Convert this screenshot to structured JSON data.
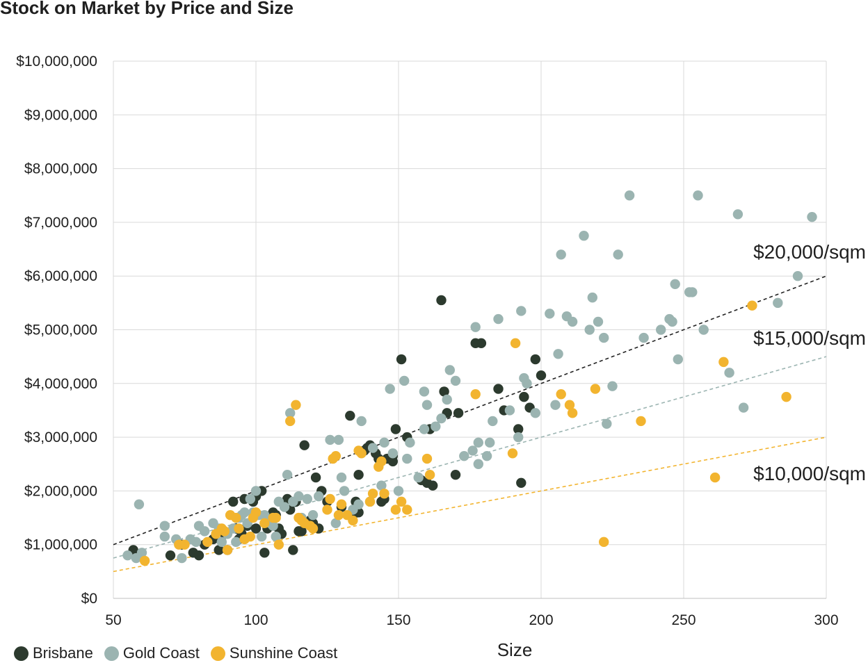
{
  "chart_data": {
    "type": "scatter",
    "title": "Stock on Market by Price and Size",
    "xlabel": "Size",
    "ylabel": "",
    "xlim": [
      50,
      300
    ],
    "ylim": [
      0,
      10000000
    ],
    "x_ticks": [
      50,
      100,
      150,
      200,
      250,
      300
    ],
    "x_tick_labels": [
      "50",
      "100",
      "150",
      "200",
      "250",
      "300"
    ],
    "y_ticks": [
      0,
      1000000,
      2000000,
      3000000,
      4000000,
      5000000,
      6000000,
      7000000,
      8000000,
      9000000,
      10000000
    ],
    "y_tick_labels": [
      "$0",
      "$1,000,000",
      "$2,000,000",
      "$3,000,000",
      "$4,000,000",
      "$5,000,000",
      "$6,000,000",
      "$7,000,000",
      "$8,000,000",
      "$9,000,000",
      "$10,000,000"
    ],
    "grid": true,
    "legend_position": "bottom-left",
    "series": [
      {
        "name": "Brisbane",
        "color": "#2c3a2e",
        "points": [
          [
            57,
            900000
          ],
          [
            70,
            800000
          ],
          [
            74,
            1000000
          ],
          [
            78,
            850000
          ],
          [
            80,
            800000
          ],
          [
            82,
            1000000
          ],
          [
            85,
            1100000
          ],
          [
            87,
            900000
          ],
          [
            89,
            1200000
          ],
          [
            90,
            900000
          ],
          [
            92,
            1800000
          ],
          [
            93,
            1300000
          ],
          [
            94,
            1100000
          ],
          [
            95,
            1200000
          ],
          [
            96,
            1850000
          ],
          [
            97,
            1350000
          ],
          [
            99,
            1800000
          ],
          [
            100,
            1900000
          ],
          [
            100,
            1300000
          ],
          [
            102,
            2000000
          ],
          [
            103,
            850000
          ],
          [
            104,
            1300000
          ],
          [
            105,
            1500000
          ],
          [
            106,
            1600000
          ],
          [
            107,
            1550000
          ],
          [
            108,
            1300000
          ],
          [
            109,
            1200000
          ],
          [
            111,
            1850000
          ],
          [
            112,
            1650000
          ],
          [
            113,
            900000
          ],
          [
            114,
            1800000
          ],
          [
            115,
            1250000
          ],
          [
            116,
            1250000
          ],
          [
            117,
            2850000
          ],
          [
            119,
            1450000
          ],
          [
            120,
            1400000
          ],
          [
            121,
            2250000
          ],
          [
            122,
            1300000
          ],
          [
            123,
            2000000
          ],
          [
            125,
            1800000
          ],
          [
            130,
            1700000
          ],
          [
            133,
            3400000
          ],
          [
            134,
            1550000
          ],
          [
            135,
            1800000
          ],
          [
            136,
            1600000
          ],
          [
            136,
            2300000
          ],
          [
            138,
            2750000
          ],
          [
            139,
            2800000
          ],
          [
            140,
            2850000
          ],
          [
            141,
            2800000
          ],
          [
            142,
            2700000
          ],
          [
            143,
            2600000
          ],
          [
            144,
            1800000
          ],
          [
            145,
            1850000
          ],
          [
            146,
            2600000
          ],
          [
            148,
            2650000
          ],
          [
            148,
            2550000
          ],
          [
            149,
            3150000
          ],
          [
            151,
            4450000
          ],
          [
            153,
            3000000
          ],
          [
            158,
            2200000
          ],
          [
            160,
            2150000
          ],
          [
            161,
            3150000
          ],
          [
            162,
            2100000
          ],
          [
            165,
            5550000
          ],
          [
            166,
            3850000
          ],
          [
            167,
            3450000
          ],
          [
            170,
            2300000
          ],
          [
            171,
            3450000
          ],
          [
            177,
            4750000
          ],
          [
            179,
            4750000
          ],
          [
            185,
            3900000
          ],
          [
            187,
            3500000
          ],
          [
            192,
            3150000
          ],
          [
            193,
            2150000
          ],
          [
            194,
            3750000
          ],
          [
            196,
            3550000
          ],
          [
            198,
            4450000
          ],
          [
            200,
            4150000
          ]
        ]
      },
      {
        "name": "Gold Coast",
        "color": "#9bb4b1",
        "points": [
          [
            55,
            800000
          ],
          [
            58,
            750000
          ],
          [
            59,
            1750000
          ],
          [
            60,
            850000
          ],
          [
            68,
            1150000
          ],
          [
            68,
            1350000
          ],
          [
            72,
            1100000
          ],
          [
            74,
            750000
          ],
          [
            77,
            1100000
          ],
          [
            79,
            1050000
          ],
          [
            80,
            1350000
          ],
          [
            82,
            1250000
          ],
          [
            85,
            1400000
          ],
          [
            87,
            1300000
          ],
          [
            88,
            1050000
          ],
          [
            90,
            1200000
          ],
          [
            92,
            1300000
          ],
          [
            93,
            1050000
          ],
          [
            94,
            1500000
          ],
          [
            95,
            1550000
          ],
          [
            96,
            1600000
          ],
          [
            97,
            1400000
          ],
          [
            98,
            1850000
          ],
          [
            99,
            1600000
          ],
          [
            100,
            2000000
          ],
          [
            101,
            1550000
          ],
          [
            102,
            1150000
          ],
          [
            103,
            1550000
          ],
          [
            104,
            1450000
          ],
          [
            105,
            1400000
          ],
          [
            106,
            1350000
          ],
          [
            107,
            1150000
          ],
          [
            108,
            1800000
          ],
          [
            110,
            1700000
          ],
          [
            111,
            2300000
          ],
          [
            112,
            3450000
          ],
          [
            113,
            1800000
          ],
          [
            115,
            1900000
          ],
          [
            116,
            1500000
          ],
          [
            118,
            1850000
          ],
          [
            120,
            1550000
          ],
          [
            122,
            1900000
          ],
          [
            126,
            2950000
          ],
          [
            128,
            1400000
          ],
          [
            129,
            2950000
          ],
          [
            130,
            2250000
          ],
          [
            131,
            2000000
          ],
          [
            134,
            1650000
          ],
          [
            136,
            1750000
          ],
          [
            137,
            3300000
          ],
          [
            140,
            1800000
          ],
          [
            141,
            2800000
          ],
          [
            144,
            2100000
          ],
          [
            145,
            2900000
          ],
          [
            147,
            3900000
          ],
          [
            148,
            2700000
          ],
          [
            150,
            2000000
          ],
          [
            152,
            4050000
          ],
          [
            153,
            2600000
          ],
          [
            154,
            2900000
          ],
          [
            157,
            2250000
          ],
          [
            159,
            3150000
          ],
          [
            159,
            3850000
          ],
          [
            160,
            3600000
          ],
          [
            163,
            3200000
          ],
          [
            165,
            3350000
          ],
          [
            167,
            3700000
          ],
          [
            168,
            4250000
          ],
          [
            170,
            4050000
          ],
          [
            173,
            2650000
          ],
          [
            176,
            2750000
          ],
          [
            177,
            5050000
          ],
          [
            178,
            2900000
          ],
          [
            178,
            2500000
          ],
          [
            181,
            2650000
          ],
          [
            182,
            2900000
          ],
          [
            183,
            3300000
          ],
          [
            185,
            5200000
          ],
          [
            189,
            3500000
          ],
          [
            192,
            3000000
          ],
          [
            193,
            5350000
          ],
          [
            194,
            4100000
          ],
          [
            195,
            4000000
          ],
          [
            198,
            3450000
          ],
          [
            203,
            5300000
          ],
          [
            205,
            3600000
          ],
          [
            206,
            4550000
          ],
          [
            207,
            6400000
          ],
          [
            209,
            5250000
          ],
          [
            211,
            5150000
          ],
          [
            215,
            6750000
          ],
          [
            217,
            5000000
          ],
          [
            218,
            5600000
          ],
          [
            220,
            5150000
          ],
          [
            222,
            4850000
          ],
          [
            223,
            3250000
          ],
          [
            225,
            3950000
          ],
          [
            227,
            6400000
          ],
          [
            231,
            7500000
          ],
          [
            236,
            4850000
          ],
          [
            242,
            5000000
          ],
          [
            245,
            5200000
          ],
          [
            246,
            5150000
          ],
          [
            247,
            5850000
          ],
          [
            248,
            4450000
          ],
          [
            252,
            5700000
          ],
          [
            253,
            5700000
          ],
          [
            255,
            7500000
          ],
          [
            257,
            5000000
          ],
          [
            266,
            4200000
          ],
          [
            269,
            7150000
          ],
          [
            271,
            3550000
          ],
          [
            283,
            5500000
          ],
          [
            290,
            6000000
          ],
          [
            295,
            7100000
          ]
        ]
      },
      {
        "name": "Sunshine Coast",
        "color": "#f2b42f",
        "points": [
          [
            61,
            700000
          ],
          [
            73,
            1000000
          ],
          [
            75,
            1000000
          ],
          [
            83,
            1050000
          ],
          [
            86,
            1200000
          ],
          [
            88,
            1300000
          ],
          [
            89,
            1250000
          ],
          [
            90,
            900000
          ],
          [
            91,
            1550000
          ],
          [
            93,
            1500000
          ],
          [
            94,
            1300000
          ],
          [
            96,
            1100000
          ],
          [
            98,
            1150000
          ],
          [
            99,
            1500000
          ],
          [
            100,
            1600000
          ],
          [
            103,
            1400000
          ],
          [
            106,
            1500000
          ],
          [
            107,
            1500000
          ],
          [
            108,
            1000000
          ],
          [
            112,
            3300000
          ],
          [
            114,
            3600000
          ],
          [
            115,
            1500000
          ],
          [
            116,
            1450000
          ],
          [
            117,
            1400000
          ],
          [
            119,
            1350000
          ],
          [
            120,
            1300000
          ],
          [
            125,
            1650000
          ],
          [
            126,
            1850000
          ],
          [
            127,
            2600000
          ],
          [
            128,
            2650000
          ],
          [
            129,
            1550000
          ],
          [
            130,
            1750000
          ],
          [
            132,
            1550000
          ],
          [
            134,
            1450000
          ],
          [
            136,
            2750000
          ],
          [
            137,
            2700000
          ],
          [
            140,
            1800000
          ],
          [
            141,
            1950000
          ],
          [
            143,
            2450000
          ],
          [
            144,
            2550000
          ],
          [
            145,
            1950000
          ],
          [
            149,
            1650000
          ],
          [
            151,
            1800000
          ],
          [
            153,
            1650000
          ],
          [
            160,
            2600000
          ],
          [
            161,
            2300000
          ],
          [
            177,
            3800000
          ],
          [
            190,
            2700000
          ],
          [
            191,
            4750000
          ],
          [
            207,
            3800000
          ],
          [
            210,
            3600000
          ],
          [
            211,
            3450000
          ],
          [
            219,
            3900000
          ],
          [
            222,
            1050000
          ],
          [
            235,
            3300000
          ],
          [
            261,
            2250000
          ],
          [
            264,
            4400000
          ],
          [
            274,
            5450000
          ],
          [
            286,
            3750000
          ]
        ]
      }
    ],
    "reference_lines": [
      {
        "name": "$20,000/sqm",
        "rate": 20000,
        "color": "#222222"
      },
      {
        "name": "$15,000/sqm",
        "rate": 15000,
        "color": "#9bb4b1"
      },
      {
        "name": "$10,000/sqm",
        "rate": 10000,
        "color": "#f2b42f"
      }
    ]
  }
}
